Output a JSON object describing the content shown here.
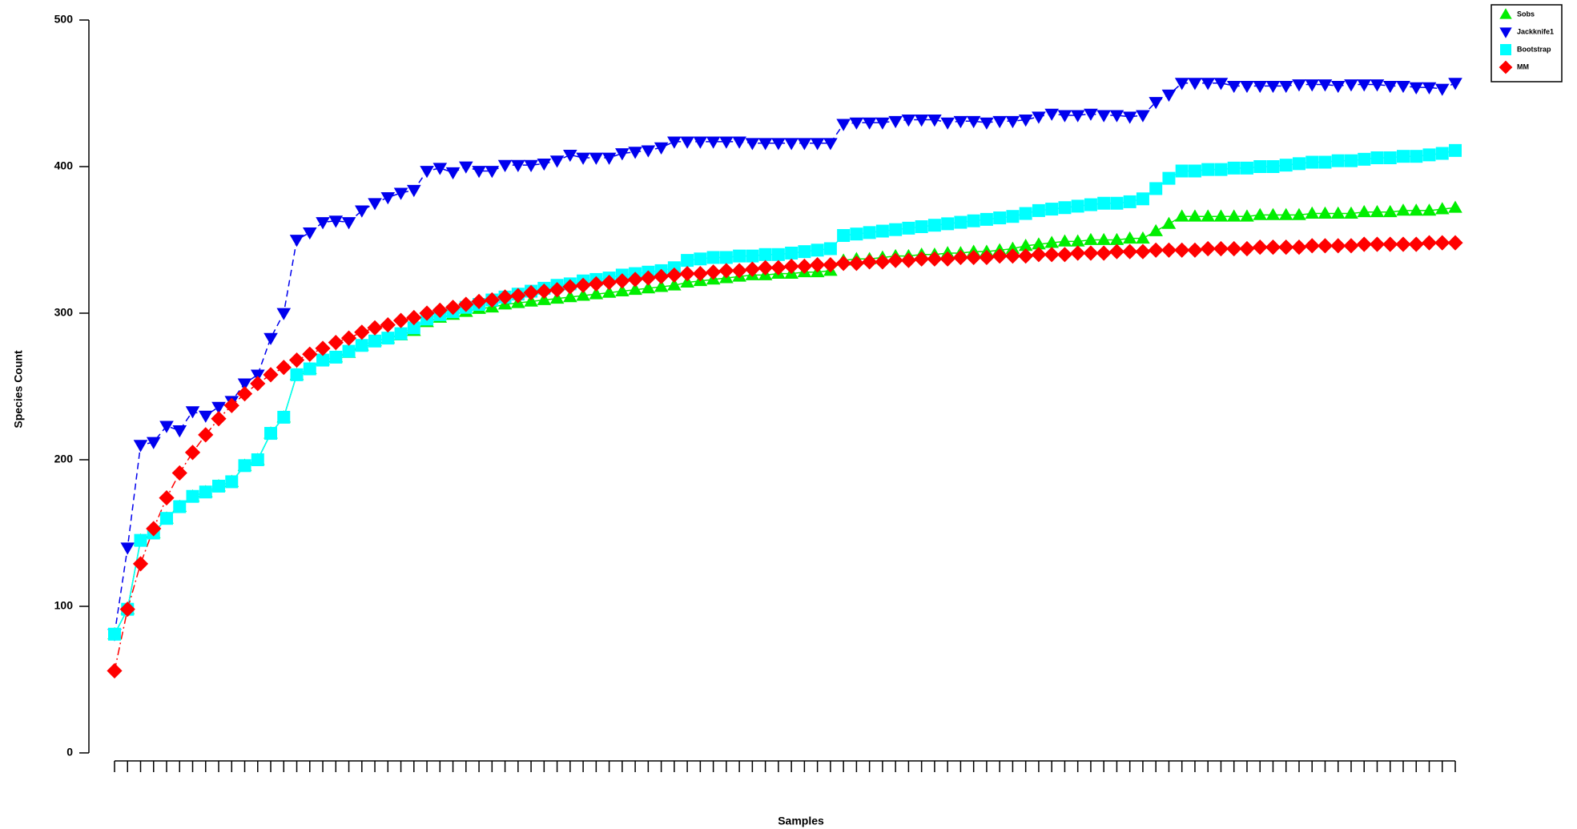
{
  "chart_data": {
    "type": "line",
    "x_label": "Samples",
    "y_label": "Species Count",
    "categories": [
      null,
      null,
      null,
      null,
      null,
      null,
      null,
      null,
      null,
      null,
      null,
      null,
      null,
      null,
      null,
      null,
      null,
      null,
      null,
      null,
      null,
      null,
      null,
      null,
      null,
      null,
      null,
      null,
      null,
      null,
      null,
      null,
      null,
      null,
      null,
      null,
      null,
      null,
      null,
      null,
      null,
      null,
      null,
      null,
      null,
      null,
      null,
      null,
      null,
      null,
      null,
      null,
      null,
      null,
      null,
      null,
      null,
      null,
      null,
      null,
      null,
      null,
      null,
      null,
      null,
      null,
      null,
      null,
      null,
      null,
      null,
      null,
      null,
      null,
      null,
      null,
      null,
      null,
      null,
      null,
      null,
      null,
      null,
      null,
      null,
      null,
      null,
      null,
      null,
      null,
      null,
      null,
      null,
      null,
      null,
      null,
      null,
      null,
      null,
      null,
      null,
      null,
      null,
      null
    ],
    "ylim": [
      0,
      500
    ],
    "yticks": [
      0,
      100,
      200,
      300,
      400,
      500
    ],
    "legend": "top-right",
    "series": [
      {
        "name": "Sobs",
        "color": "#00ee00",
        "marker": "triangle-up",
        "linestyle": "solid",
        "values": [
          81,
          98,
          145,
          150,
          160,
          168,
          175,
          178,
          182,
          185,
          196,
          200,
          218,
          229,
          258,
          262,
          268,
          270,
          273,
          278,
          281,
          283,
          285,
          288,
          294,
          297,
          299,
          301,
          303,
          304,
          306,
          307,
          308,
          309,
          310,
          311,
          312,
          313,
          314,
          315,
          316,
          317,
          318,
          319,
          321,
          322,
          323,
          324,
          325,
          326,
          326,
          327,
          327,
          328,
          328,
          329,
          336,
          337,
          337,
          338,
          339,
          339,
          340,
          340,
          341,
          341,
          342,
          342,
          343,
          344,
          346,
          347,
          348,
          349,
          349,
          350,
          350,
          350,
          351,
          351,
          356,
          361,
          366,
          366,
          366,
          366,
          366,
          366,
          367,
          367,
          367,
          367,
          368,
          368,
          368,
          368,
          369,
          369,
          369,
          370,
          370,
          370,
          371,
          372
        ]
      },
      {
        "name": "Jackknife1",
        "color": "#0000ee",
        "marker": "triangle-down",
        "linestyle": "dashed",
        "values": [
          81,
          140,
          210,
          212,
          223,
          220,
          233,
          230,
          236,
          240,
          252,
          258,
          283,
          300,
          350,
          355,
          362,
          363,
          362,
          370,
          375,
          379,
          382,
          384,
          397,
          399,
          396,
          400,
          397,
          397,
          401,
          401,
          401,
          402,
          404,
          408,
          406,
          406,
          406,
          409,
          410,
          411,
          413,
          417,
          417,
          417,
          417,
          417,
          417,
          416,
          416,
          416,
          416,
          416,
          416,
          416,
          429,
          430,
          430,
          430,
          431,
          432,
          432,
          432,
          430,
          431,
          431,
          430,
          431,
          431,
          432,
          434,
          436,
          435,
          435,
          436,
          435,
          435,
          434,
          435,
          444,
          449,
          457,
          457,
          457,
          457,
          455,
          455,
          455,
          455,
          455,
          456,
          456,
          456,
          455,
          456,
          456,
          456,
          455,
          455,
          454,
          454,
          453,
          457
        ]
      },
      {
        "name": "Bootstrap",
        "color": "#00ffff",
        "marker": "square",
        "linestyle": "solid",
        "values": [
          81,
          98,
          145,
          150,
          160,
          168,
          175,
          178,
          182,
          185,
          196,
          200,
          218,
          229,
          258,
          262,
          268,
          270,
          274,
          278,
          281,
          283,
          286,
          290,
          296,
          299,
          301,
          304,
          306,
          309,
          311,
          313,
          315,
          317,
          319,
          320,
          322,
          323,
          324,
          326,
          327,
          328,
          329,
          331,
          336,
          337,
          338,
          338,
          339,
          339,
          340,
          340,
          341,
          342,
          343,
          344,
          353,
          354,
          355,
          356,
          357,
          358,
          359,
          360,
          361,
          362,
          363,
          364,
          365,
          366,
          368,
          370,
          371,
          372,
          373,
          374,
          375,
          375,
          376,
          378,
          385,
          392,
          397,
          397,
          398,
          398,
          399,
          399,
          400,
          400,
          401,
          402,
          403,
          403,
          404,
          404,
          405,
          406,
          406,
          407,
          407,
          408,
          409,
          411
        ]
      },
      {
        "name": "MM",
        "color": "#ff0000",
        "marker": "diamond",
        "linestyle": "dashdot",
        "values": [
          56,
          98,
          129,
          153,
          174,
          191,
          205,
          217,
          228,
          237,
          245,
          252,
          258,
          263,
          268,
          272,
          276,
          280,
          283,
          287,
          290,
          292,
          295,
          297,
          300,
          302,
          304,
          306,
          308,
          309,
          311,
          312,
          314,
          315,
          316,
          318,
          319,
          320,
          321,
          322,
          323,
          324,
          325,
          326,
          327,
          327,
          328,
          329,
          329,
          330,
          331,
          331,
          332,
          332,
          333,
          333,
          334,
          334,
          335,
          335,
          336,
          336,
          337,
          337,
          337,
          338,
          338,
          338,
          339,
          339,
          339,
          340,
          340,
          340,
          341,
          341,
          341,
          342,
          342,
          342,
          343,
          343,
          343,
          343,
          344,
          344,
          344,
          344,
          345,
          345,
          345,
          345,
          346,
          346,
          346,
          346,
          347,
          347,
          347,
          347,
          347,
          348,
          348,
          348
        ]
      }
    ]
  }
}
